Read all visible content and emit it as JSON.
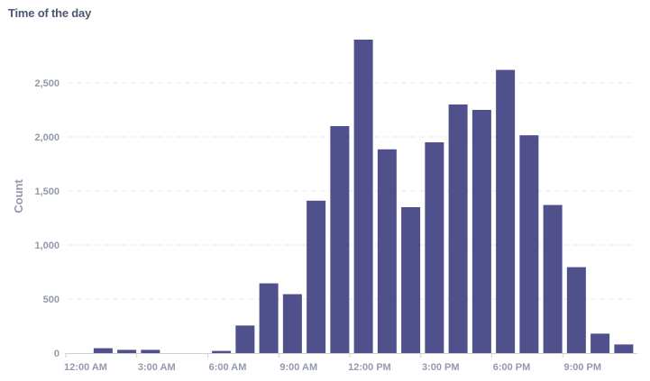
{
  "card": {
    "title": "Time of the day"
  },
  "colors": {
    "bar": "#50508c",
    "grid": "#e6e8ec",
    "axis_text": "#949aab",
    "title": "#4c5773"
  },
  "chart_data": {
    "type": "bar",
    "title": "Time of the day",
    "xlabel": "",
    "ylabel": "Count",
    "ylim": [
      0,
      2900
    ],
    "yticks": [
      0,
      500,
      1000,
      1500,
      2000,
      2500
    ],
    "ytick_labels": [
      "0",
      "500",
      "1,000",
      "1,500",
      "2,000",
      "2,500"
    ],
    "grid": true,
    "categories": [
      0,
      1,
      2,
      3,
      4,
      5,
      6,
      7,
      8,
      9,
      10,
      11,
      12,
      13,
      14,
      15,
      16,
      17,
      18,
      19,
      20,
      21,
      22,
      23
    ],
    "values": [
      0,
      45,
      30,
      30,
      0,
      0,
      20,
      255,
      645,
      545,
      1410,
      2100,
      2900,
      1885,
      1350,
      1950,
      2300,
      2250,
      2620,
      2015,
      1370,
      795,
      180,
      80
    ],
    "xticks": [
      0,
      3,
      6,
      9,
      12,
      15,
      18,
      21
    ],
    "xtick_labels": [
      "12:00 AM",
      "3:00 AM",
      "6:00 AM",
      "9:00 AM",
      "12:00 PM",
      "3:00 PM",
      "6:00 PM",
      "9:00 PM"
    ]
  }
}
